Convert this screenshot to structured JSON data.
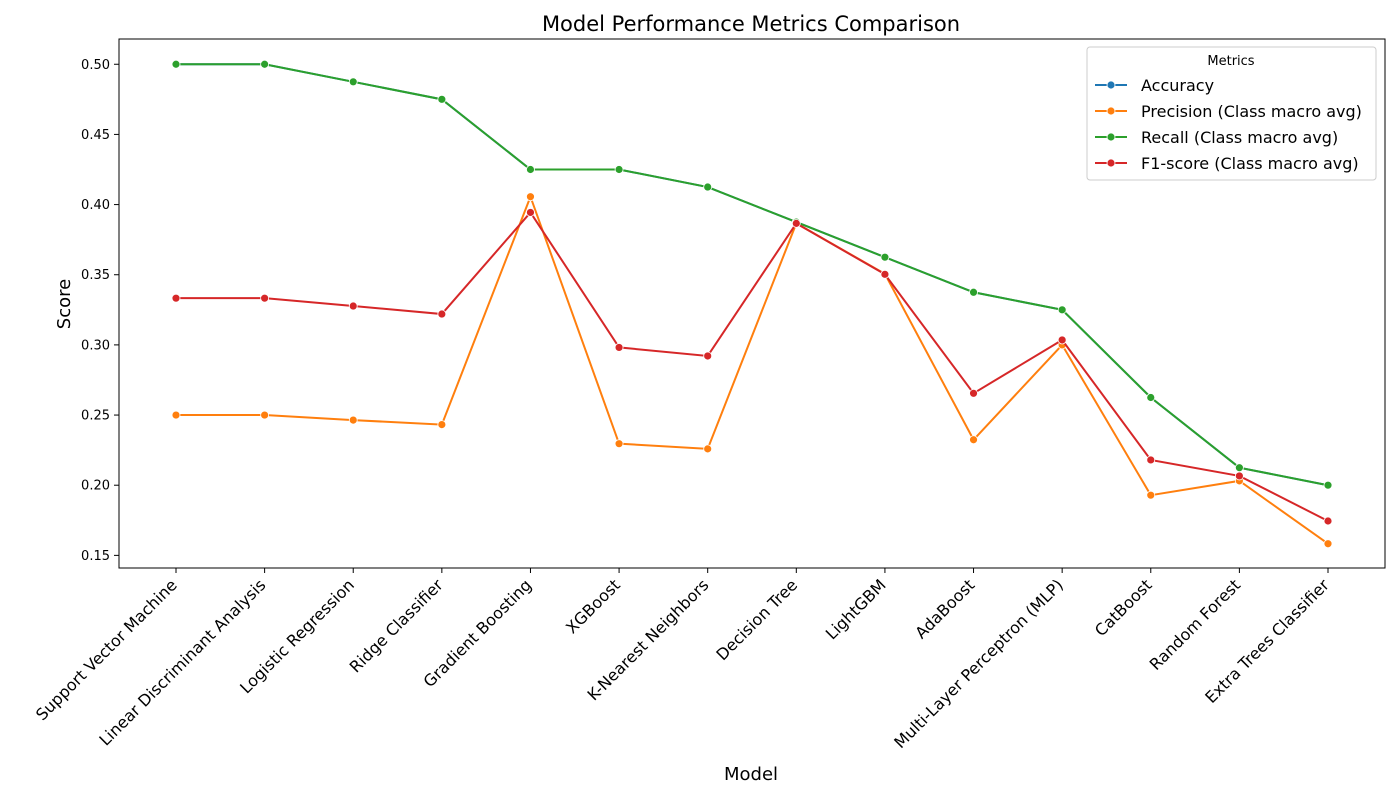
{
  "chart_data": {
    "type": "line",
    "title": "Model Performance Metrics Comparison",
    "xlabel": "Model",
    "ylabel": "Score",
    "ylim": [
      0.141,
      0.518
    ],
    "yticks": [
      0.15,
      0.2,
      0.25,
      0.3,
      0.35,
      0.4,
      0.45,
      0.5
    ],
    "ytick_labels": [
      "0.15",
      "0.20",
      "0.25",
      "0.30",
      "0.35",
      "0.40",
      "0.45",
      "0.50"
    ],
    "grid": false,
    "legend": {
      "title": "Metrics",
      "placement": "top-right"
    },
    "categories": [
      "Support Vector Machine",
      "Linear Discriminant Analysis",
      "Logistic Regression",
      "Ridge Classifier",
      "Gradient Boosting",
      "XGBoost",
      "K-Nearest Neighbors",
      "Decision Tree",
      "LightGBM",
      "AdaBoost",
      "Multi-Layer Perceptron (MLP)",
      "CatBoost",
      "Random Forest",
      "Extra Trees Classifier"
    ],
    "series": [
      {
        "name": "Accuracy",
        "color": "#1f77b4",
        "values": [
          0.5,
          0.5,
          0.4875,
          0.475,
          0.425,
          0.425,
          0.4125,
          0.3875,
          0.3625,
          0.3375,
          0.325,
          0.2625,
          0.2125,
          0.2
        ]
      },
      {
        "name": "Precision (Class macro avg)",
        "color": "#ff7f0e",
        "values": [
          0.25,
          0.25,
          0.2464,
          0.2432,
          0.4056,
          0.2296,
          0.2259,
          0.3866,
          0.3506,
          0.2324,
          0.3,
          0.1929,
          0.2031,
          0.1583
        ]
      },
      {
        "name": "Recall (Class macro avg)",
        "color": "#2ca02c",
        "values": [
          0.5,
          0.5,
          0.4875,
          0.475,
          0.425,
          0.425,
          0.4125,
          0.3875,
          0.3625,
          0.3375,
          0.325,
          0.2625,
          0.2125,
          0.2
        ]
      },
      {
        "name": "F1-score (Class macro avg)",
        "color": "#d62728",
        "values": [
          0.3333,
          0.3333,
          0.3277,
          0.322,
          0.3944,
          0.2982,
          0.2921,
          0.3866,
          0.3503,
          0.2655,
          0.3035,
          0.218,
          0.2066,
          0.1745
        ]
      }
    ]
  }
}
